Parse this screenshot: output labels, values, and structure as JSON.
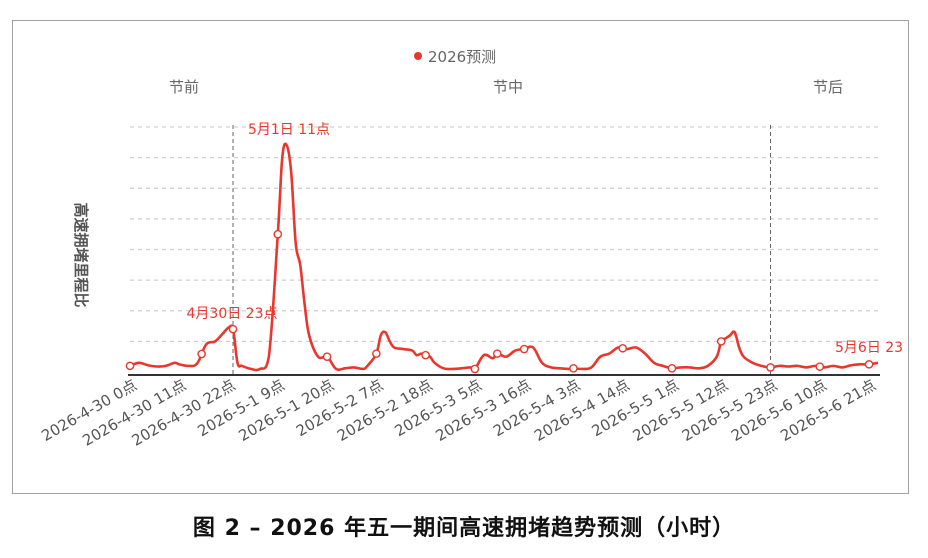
{
  "caption": "图 2 – 2026 年五一期间高速拥堵趋势预测（小时）",
  "chart_data": {
    "type": "line",
    "title": "",
    "xlabel": "",
    "ylabel": "高速拥堵里程比",
    "legend": {
      "position": "top-center",
      "entries": [
        "2026预测"
      ]
    },
    "grid": true,
    "ylim": [
      0,
      8
    ],
    "x_start": "2026-4-30 0点",
    "x_end": "2026-5-6 23点",
    "tick_labels": [
      "2026-4-30 0点",
      "2026-4-30 11点",
      "2026-4-30 22点",
      "2026-5-1 9点",
      "2026-5-1 20点",
      "2026-5-2 7点",
      "2026-5-2 18点",
      "2026-5-3 5点",
      "2026-5-3 16点",
      "2026-5-4 3点",
      "2026-5-4 14点",
      "2026-5-5 1点",
      "2026-5-5 12点",
      "2026-5-5 23点",
      "2026-5-6 10点",
      "2026-5-6 21点"
    ],
    "tick_hours": [
      0,
      11,
      22,
      33,
      44,
      55,
      66,
      77,
      88,
      99,
      110,
      121,
      132,
      143,
      154,
      165
    ],
    "periods": [
      {
        "label": "节前",
        "from_hour": 0,
        "to_hour": 23
      },
      {
        "label": "节中",
        "from_hour": 23,
        "to_hour": 143
      },
      {
        "label": "节后",
        "from_hour": 143,
        "to_hour": 167
      }
    ],
    "dividers_hours": [
      23,
      143
    ],
    "annotations": [
      {
        "text": "4月30日 23点",
        "hour": 23,
        "y": 1.2
      },
      {
        "text": "5月1日 11点",
        "hour": 35,
        "y": 7.4
      },
      {
        "text": "5月6日 23",
        "hour": 167,
        "y": 0.3
      }
    ],
    "series": [
      {
        "name": "2026预测",
        "color": "#e8372c",
        "points": [
          [
            0,
            0.2
          ],
          [
            2,
            0.3
          ],
          [
            4,
            0.22
          ],
          [
            6,
            0.18
          ],
          [
            8,
            0.2
          ],
          [
            10,
            0.3
          ],
          [
            11,
            0.25
          ],
          [
            13,
            0.2
          ],
          [
            15,
            0.28
          ],
          [
            17,
            0.9
          ],
          [
            19,
            1.0
          ],
          [
            21,
            1.3
          ],
          [
            22,
            1.45
          ],
          [
            23,
            1.4
          ],
          [
            24,
            0.3
          ],
          [
            25,
            0.2
          ],
          [
            27,
            0.1
          ],
          [
            29,
            0.1
          ],
          [
            31,
            0.5
          ],
          [
            33,
            4.5
          ],
          [
            34,
            7.0
          ],
          [
            35,
            7.4
          ],
          [
            36,
            6.5
          ],
          [
            37,
            4.2
          ],
          [
            38,
            3.5
          ],
          [
            39,
            2.2
          ],
          [
            40,
            1.2
          ],
          [
            42,
            0.5
          ],
          [
            44,
            0.5
          ],
          [
            46,
            0.1
          ],
          [
            48,
            0.12
          ],
          [
            50,
            0.15
          ],
          [
            52,
            0.1
          ],
          [
            53,
            0.2
          ],
          [
            55,
            0.6
          ],
          [
            56,
            1.2
          ],
          [
            57,
            1.3
          ],
          [
            58,
            1.0
          ],
          [
            59,
            0.8
          ],
          [
            61,
            0.75
          ],
          [
            63,
            0.7
          ],
          [
            64,
            0.55
          ],
          [
            65,
            0.6
          ],
          [
            66,
            0.55
          ],
          [
            67,
            0.5
          ],
          [
            68,
            0.3
          ],
          [
            70,
            0.12
          ],
          [
            72,
            0.1
          ],
          [
            74,
            0.12
          ],
          [
            76,
            0.15
          ],
          [
            77,
            0.1
          ],
          [
            79,
            0.55
          ],
          [
            81,
            0.45
          ],
          [
            82,
            0.6
          ],
          [
            84,
            0.5
          ],
          [
            86,
            0.7
          ],
          [
            88,
            0.75
          ],
          [
            90,
            0.8
          ],
          [
            92,
            0.3
          ],
          [
            94,
            0.15
          ],
          [
            96,
            0.12
          ],
          [
            98,
            0.1
          ],
          [
            99,
            0.12
          ],
          [
            101,
            0.1
          ],
          [
            103,
            0.15
          ],
          [
            105,
            0.5
          ],
          [
            107,
            0.6
          ],
          [
            109,
            0.8
          ],
          [
            111,
            0.75
          ],
          [
            113,
            0.8
          ],
          [
            115,
            0.6
          ],
          [
            117,
            0.3
          ],
          [
            119,
            0.2
          ],
          [
            121,
            0.12
          ],
          [
            123,
            0.15
          ],
          [
            125,
            0.15
          ],
          [
            127,
            0.12
          ],
          [
            129,
            0.2
          ],
          [
            131,
            0.5
          ],
          [
            132,
            1.0
          ],
          [
            133,
            1.1
          ],
          [
            134,
            1.2
          ],
          [
            135,
            1.3
          ],
          [
            136,
            0.8
          ],
          [
            137,
            0.5
          ],
          [
            139,
            0.3
          ],
          [
            141,
            0.2
          ],
          [
            143,
            0.15
          ],
          [
            145,
            0.2
          ],
          [
            147,
            0.18
          ],
          [
            149,
            0.2
          ],
          [
            151,
            0.15
          ],
          [
            153,
            0.2
          ],
          [
            155,
            0.15
          ],
          [
            157,
            0.2
          ],
          [
            159,
            0.15
          ],
          [
            161,
            0.22
          ],
          [
            163,
            0.25
          ],
          [
            165,
            0.25
          ],
          [
            167,
            0.3
          ]
        ],
        "markers_hours": [
          0,
          16,
          23,
          33,
          44,
          55,
          66,
          77,
          82,
          88,
          99,
          110,
          121,
          132,
          143,
          154,
          165
        ]
      }
    ]
  }
}
